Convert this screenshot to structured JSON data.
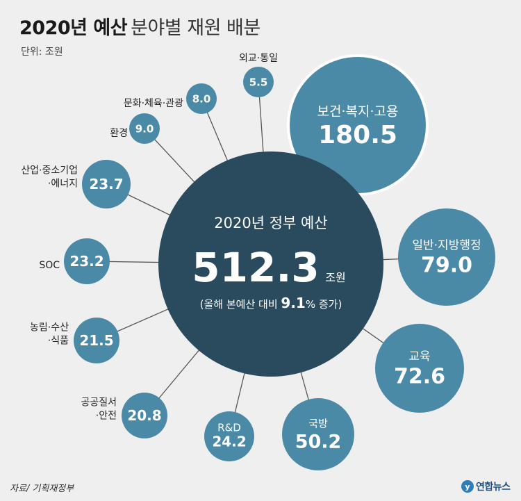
{
  "header": {
    "title_bold": "2020년 예산",
    "title_light": "분야별 재원 배분",
    "unit": "단위: 조원"
  },
  "footer": {
    "source": "자료/ 기획재정부",
    "logo_text": "연합뉴스"
  },
  "colors": {
    "background": "#efefef",
    "bubble": "#4b8aa6",
    "center": "#2a4a5e",
    "connector": "#555555",
    "text_light": "#ffffff"
  },
  "chart_data": {
    "type": "bubble",
    "title": "2020년 예산 분야별 재원 배분",
    "unit": "조원",
    "center": {
      "label": "2020년 정부 예산",
      "value": 512.3,
      "value_text": "512.3",
      "value_unit": "조원",
      "note_prefix": "(올해 본예산 대비",
      "note_value": "9.1",
      "note_suffix": "% 증가)"
    },
    "categories": [
      {
        "name": "보건·복지·고용",
        "value": 180.5,
        "value_text": "180.5"
      },
      {
        "name": "일반·지방행정",
        "value": 79.0,
        "value_text": "79.0"
      },
      {
        "name": "교육",
        "value": 72.6,
        "value_text": "72.6"
      },
      {
        "name": "국방",
        "value": 50.2,
        "value_text": "50.2"
      },
      {
        "name": "R&D",
        "value": 24.2,
        "value_text": "24.2"
      },
      {
        "name": "공공질서·안전",
        "name_lines": [
          "공공질서",
          "·안전"
        ],
        "value": 20.8,
        "value_text": "20.8"
      },
      {
        "name": "농림·수산·식품",
        "name_lines": [
          "농림·수산",
          "·식품"
        ],
        "value": 21.5,
        "value_text": "21.5"
      },
      {
        "name": "SOC",
        "value": 23.2,
        "value_text": "23.2"
      },
      {
        "name": "산업·중소기업·에너지",
        "name_lines": [
          "산업·중소기업",
          "·에너지"
        ],
        "value": 23.7,
        "value_text": "23.7"
      },
      {
        "name": "환경",
        "value": 9.0,
        "value_text": "9.0"
      },
      {
        "name": "문화·체육·관광",
        "value": 8.0,
        "value_text": "8.0"
      },
      {
        "name": "외교·통일",
        "value": 5.5,
        "value_text": "5.5"
      }
    ]
  }
}
